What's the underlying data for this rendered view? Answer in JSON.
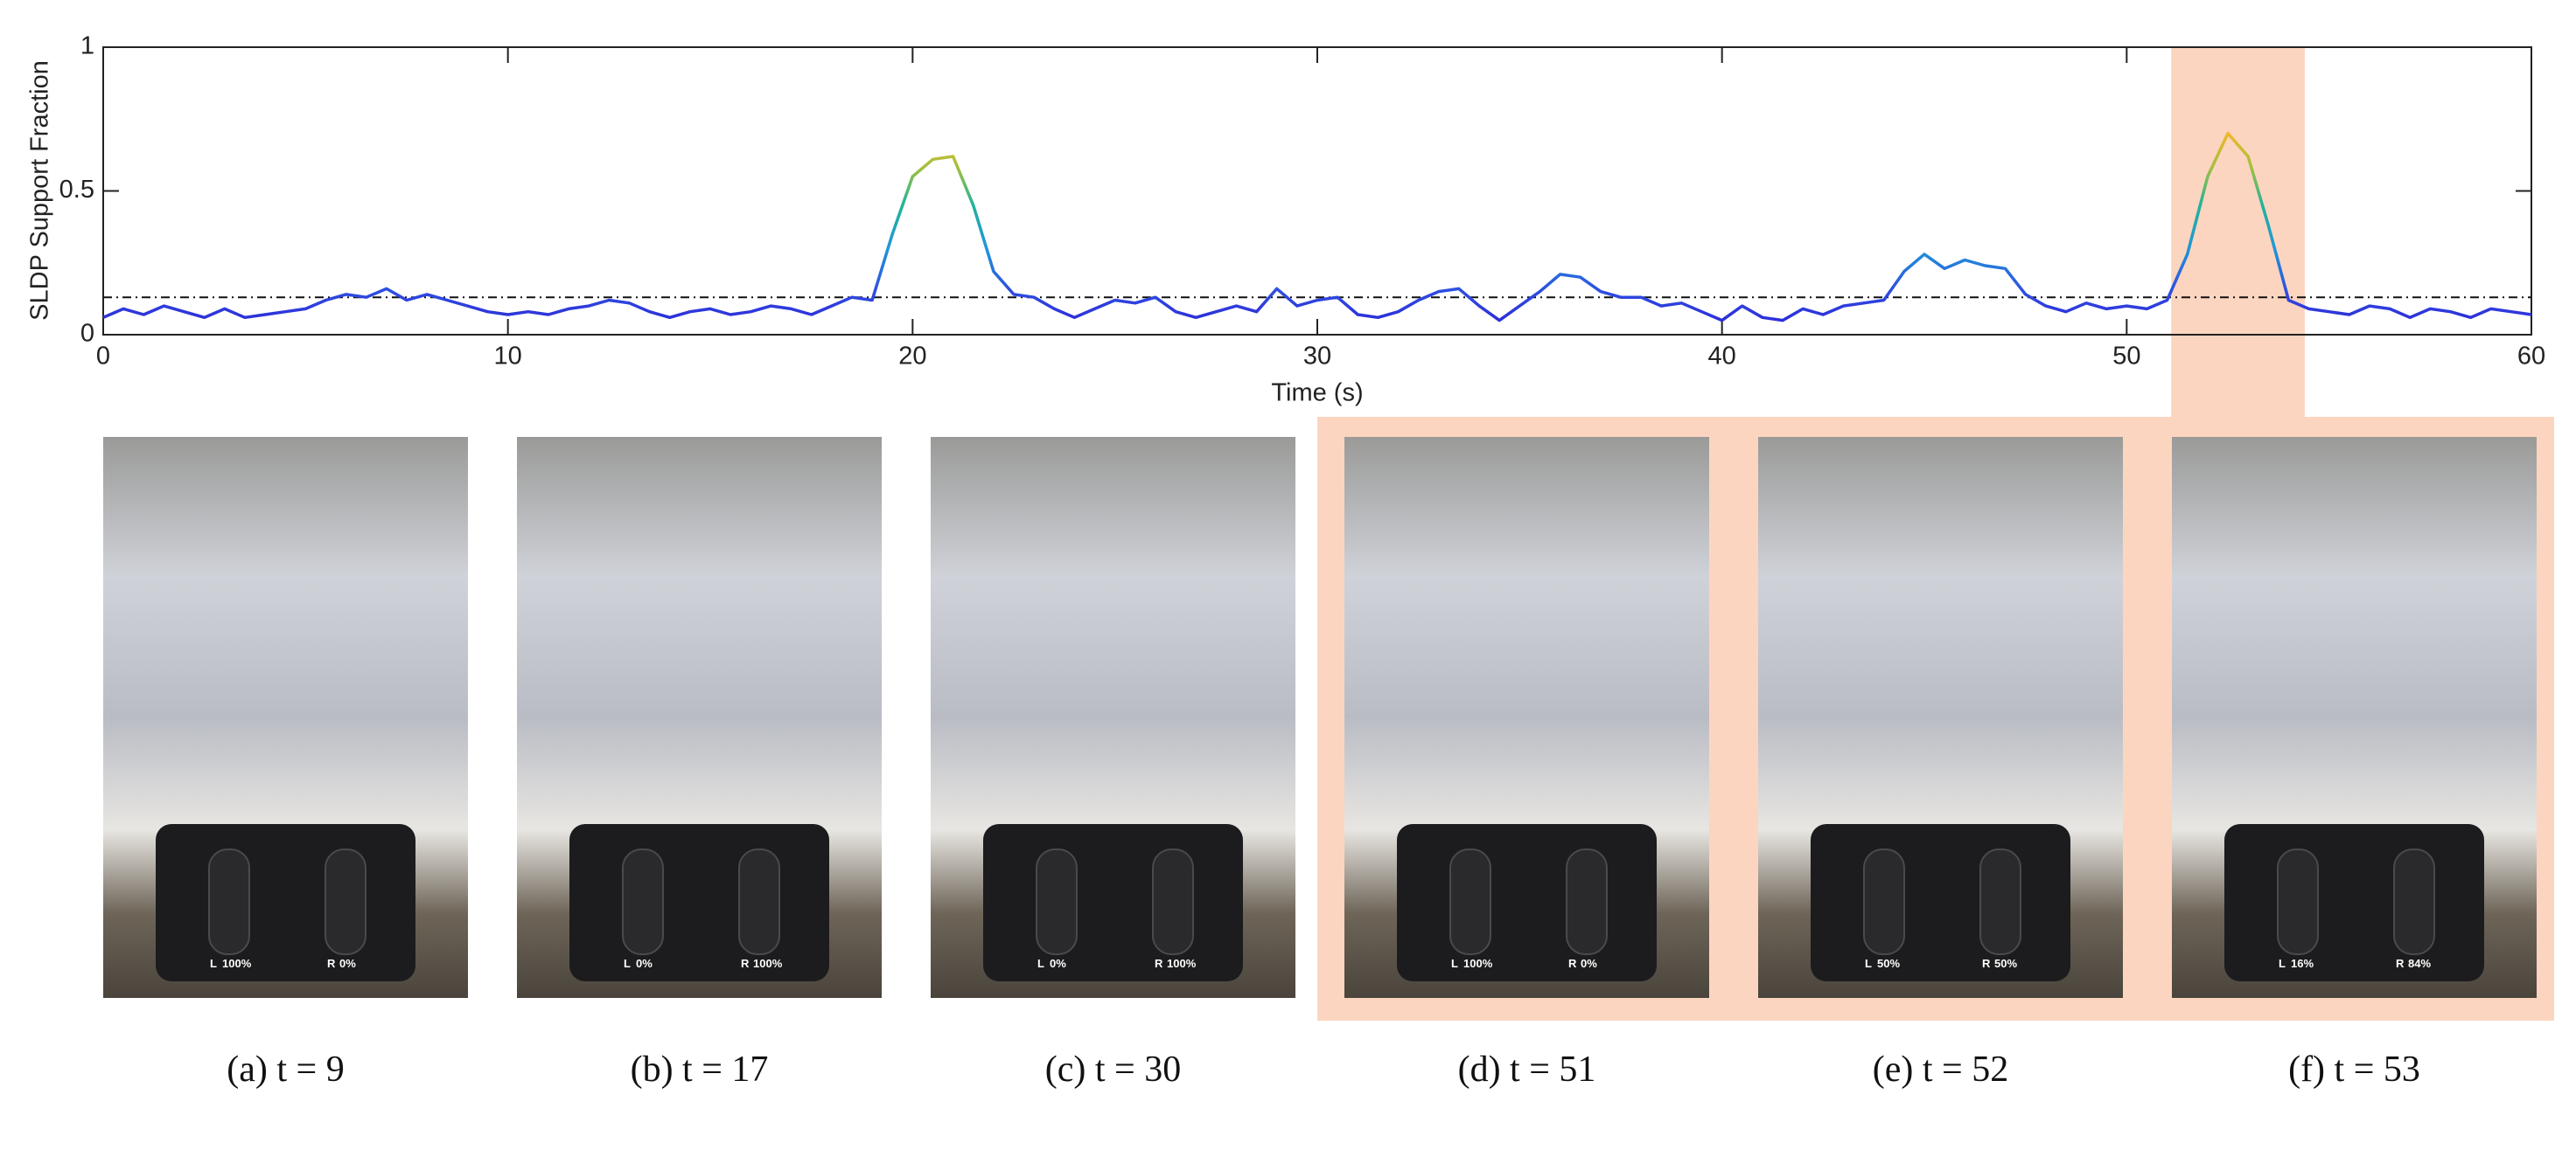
{
  "chart_data": {
    "type": "line",
    "ylabel": "SLDP Support Fraction",
    "xlabel": "Time (s)",
    "x": [
      0,
      0.5,
      1,
      1.5,
      2,
      2.5,
      3,
      3.5,
      4,
      4.5,
      5,
      5.5,
      6,
      6.5,
      7,
      7.5,
      8,
      8.5,
      9,
      9.5,
      10,
      10.5,
      11,
      11.5,
      12,
      12.5,
      13,
      13.5,
      14,
      14.5,
      15,
      15.5,
      16,
      16.5,
      17,
      17.5,
      18,
      18.5,
      19,
      19.5,
      20,
      20.5,
      21,
      21.5,
      22,
      22.5,
      23,
      23.5,
      24,
      24.5,
      25,
      25.5,
      26,
      26.5,
      27,
      27.5,
      28,
      28.5,
      29,
      29.5,
      30,
      30.5,
      31,
      31.5,
      32,
      32.5,
      33,
      33.5,
      34,
      34.5,
      35,
      35.5,
      36,
      36.5,
      37,
      37.5,
      38,
      38.5,
      39,
      39.5,
      40,
      40.5,
      41,
      41.5,
      42,
      42.5,
      43,
      43.5,
      44,
      44.5,
      45,
      45.5,
      46,
      46.5,
      47,
      47.5,
      48,
      48.5,
      49,
      49.5,
      50,
      50.5,
      51,
      51.5,
      52,
      52.5,
      53,
      53.5,
      54,
      54.5,
      55,
      55.5,
      56,
      56.5,
      57,
      57.5,
      58,
      58.5,
      59,
      59.5,
      60
    ],
    "values": [
      0.06,
      0.09,
      0.07,
      0.1,
      0.08,
      0.06,
      0.09,
      0.06,
      0.07,
      0.08,
      0.09,
      0.12,
      0.14,
      0.13,
      0.16,
      0.12,
      0.14,
      0.12,
      0.1,
      0.08,
      0.07,
      0.08,
      0.07,
      0.09,
      0.1,
      0.12,
      0.11,
      0.08,
      0.06,
      0.08,
      0.09,
      0.07,
      0.08,
      0.1,
      0.09,
      0.07,
      0.1,
      0.13,
      0.12,
      0.35,
      0.55,
      0.61,
      0.62,
      0.45,
      0.22,
      0.14,
      0.13,
      0.09,
      0.06,
      0.09,
      0.12,
      0.11,
      0.13,
      0.08,
      0.06,
      0.08,
      0.1,
      0.08,
      0.16,
      0.1,
      0.12,
      0.13,
      0.07,
      0.06,
      0.08,
      0.12,
      0.15,
      0.16,
      0.1,
      0.05,
      0.1,
      0.15,
      0.21,
      0.2,
      0.15,
      0.13,
      0.13,
      0.1,
      0.11,
      0.08,
      0.05,
      0.1,
      0.06,
      0.05,
      0.09,
      0.07,
      0.1,
      0.11,
      0.12,
      0.22,
      0.28,
      0.23,
      0.26,
      0.24,
      0.23,
      0.14,
      0.1,
      0.08,
      0.11,
      0.09,
      0.1,
      0.09,
      0.12,
      0.28,
      0.55,
      0.7,
      0.62,
      0.38,
      0.12,
      0.09,
      0.08,
      0.07,
      0.1,
      0.09,
      0.06,
      0.09,
      0.08,
      0.06,
      0.09,
      0.08,
      0.07
    ],
    "threshold": 0.13,
    "highlight": [
      51.1,
      54.4
    ],
    "highlight_color": "#fcd5c0",
    "xlim": [
      0,
      60
    ],
    "xticks": [
      0,
      10,
      20,
      30,
      40,
      50,
      60
    ],
    "ylim": [
      0,
      1
    ],
    "yticks": [
      0,
      0.5,
      1
    ]
  },
  "panels": {
    "left_label": "L",
    "right_label": "R",
    "items": [
      {
        "caption": "(a) t = 9",
        "left": "100%",
        "right": "0%"
      },
      {
        "caption": "(b) t = 17",
        "left": "0%",
        "right": "100%"
      },
      {
        "caption": "(c) t = 30",
        "left": "0%",
        "right": "100%"
      },
      {
        "caption": "(d) t = 51",
        "left": "100%",
        "right": "0%"
      },
      {
        "caption": "(e) t = 52",
        "left": "50%",
        "right": "50%"
      },
      {
        "caption": "(f) t = 53",
        "left": "16%",
        "right": "84%"
      }
    ]
  }
}
